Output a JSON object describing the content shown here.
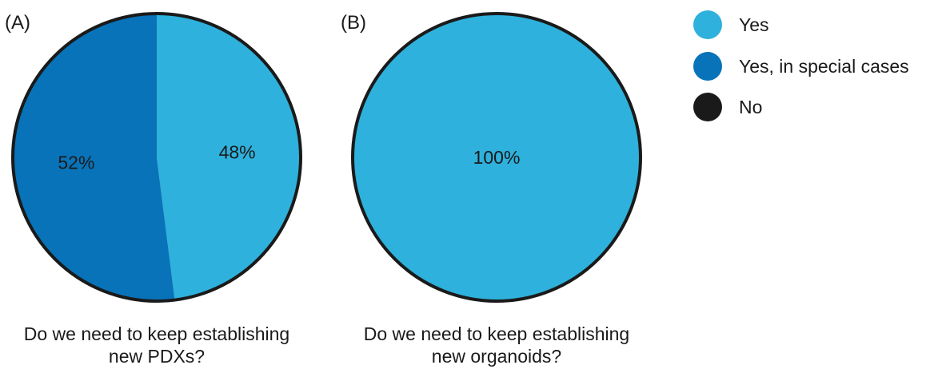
{
  "legend": [
    {
      "label": "Yes",
      "color": "#2eb1dc"
    },
    {
      "label": "Yes, in special cases",
      "color": "#0873b9"
    },
    {
      "label": "No",
      "color": "#1a1a1a"
    }
  ],
  "chart_data": [
    {
      "type": "pie",
      "panel_label": "(A)",
      "caption_lines": [
        "Do we need to keep establishing",
        "new PDXs?"
      ],
      "slices": [
        {
          "category": "Yes",
          "value": 48,
          "label": "48%"
        },
        {
          "category": "Yes, in special cases",
          "value": 52,
          "label": "52%"
        },
        {
          "category": "No",
          "value": 0,
          "label": ""
        }
      ]
    },
    {
      "type": "pie",
      "panel_label": "(B)",
      "caption_lines": [
        "Do we need to keep establishing",
        "new organoids?"
      ],
      "slices": [
        {
          "category": "Yes",
          "value": 100,
          "label": "100%"
        },
        {
          "category": "Yes, in special cases",
          "value": 0,
          "label": ""
        },
        {
          "category": "No",
          "value": 0,
          "label": ""
        }
      ]
    }
  ]
}
